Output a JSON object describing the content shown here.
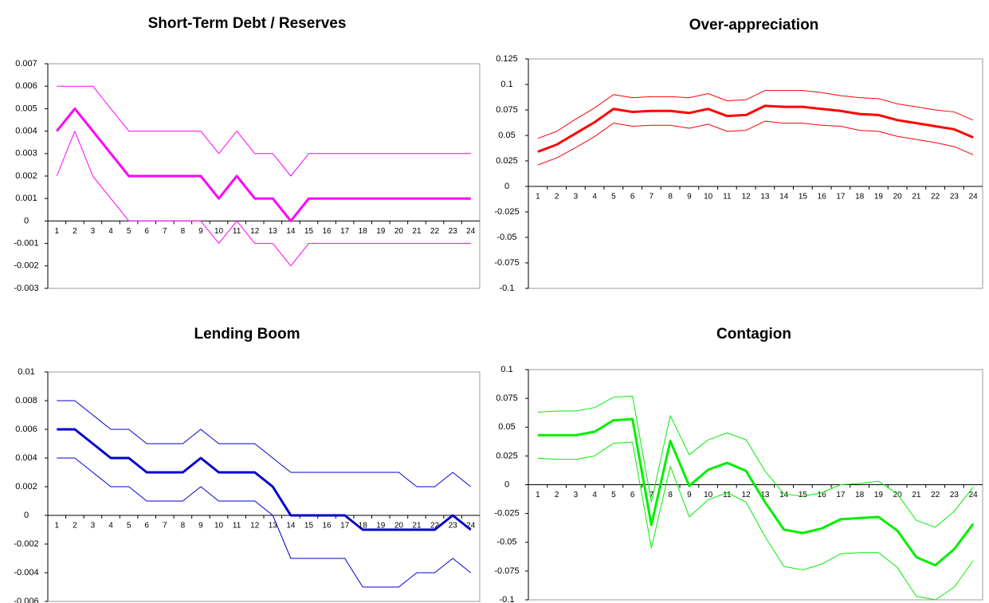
{
  "chart_data": [
    {
      "type": "line",
      "title": "Short-Term Debt / Reserves",
      "categories": [
        1,
        2,
        3,
        4,
        5,
        6,
        7,
        8,
        9,
        10,
        11,
        12,
        13,
        14,
        15,
        16,
        17,
        18,
        19,
        20,
        21,
        22,
        23,
        24
      ],
      "ylim": [
        -0.003,
        0.007
      ],
      "yticks": [
        -0.003,
        -0.002,
        -0.001,
        0,
        0.001,
        0.002,
        0.003,
        0.004,
        0.005,
        0.006,
        0.007
      ],
      "series": [
        {
          "color": "#ff00ff",
          "values": [
            0.004,
            0.005,
            0.004,
            0.003,
            0.002,
            0.002,
            0.002,
            0.002,
            0.002,
            0.001,
            0.002,
            0.001,
            0.001,
            0,
            0.001,
            0.001,
            0.001,
            0.001,
            0.001,
            0.001,
            0.001,
            0.001,
            0.001,
            0.001
          ]
        },
        {
          "color": "#ff00ff",
          "values": [
            0.006,
            0.006,
            0.006,
            0.005,
            0.004,
            0.004,
            0.004,
            0.004,
            0.004,
            0.003,
            0.004,
            0.003,
            0.003,
            0.002,
            0.003,
            0.003,
            0.003,
            0.003,
            0.003,
            0.003,
            0.003,
            0.003,
            0.003,
            0.003
          ]
        },
        {
          "color": "#ff00ff",
          "values": [
            0.002,
            0.004,
            0.002,
            0.001,
            0,
            0,
            0,
            0,
            0,
            -0.001,
            0,
            -0.001,
            -0.001,
            -0.002,
            -0.001,
            -0.001,
            -0.001,
            -0.001,
            -0.001,
            -0.001,
            -0.001,
            -0.001,
            -0.001,
            -0.001
          ]
        }
      ]
    },
    {
      "type": "line",
      "title": "Over-appreciation",
      "categories": [
        1,
        2,
        3,
        4,
        5,
        6,
        7,
        8,
        9,
        10,
        11,
        12,
        13,
        14,
        15,
        16,
        17,
        18,
        19,
        20,
        21,
        22,
        23,
        24
      ],
      "ylim": [
        -0.1,
        0.125
      ],
      "yticks": [
        -0.1,
        -0.075,
        -0.05,
        -0.025,
        0,
        0.025,
        0.05,
        0.075,
        0.1,
        0.125
      ],
      "series": [
        {
          "color": "#ff0000",
          "values": [
            0.034,
            0.041,
            0.052,
            0.063,
            0.076,
            0.073,
            0.074,
            0.074,
            0.072,
            0.076,
            0.069,
            0.07,
            0.079,
            0.078,
            0.078,
            0.076,
            0.074,
            0.071,
            0.07,
            0.065,
            0.062,
            0.059,
            0.056,
            0.048
          ]
        },
        {
          "color": "#ff0000",
          "values": [
            0.047,
            0.054,
            0.066,
            0.077,
            0.09,
            0.087,
            0.088,
            0.088,
            0.087,
            0.091,
            0.084,
            0.085,
            0.094,
            0.094,
            0.094,
            0.092,
            0.089,
            0.087,
            0.086,
            0.081,
            0.078,
            0.075,
            0.073,
            0.065
          ]
        },
        {
          "color": "#ff0000",
          "values": [
            0.021,
            0.028,
            0.038,
            0.049,
            0.062,
            0.059,
            0.06,
            0.06,
            0.057,
            0.061,
            0.054,
            0.055,
            0.064,
            0.062,
            0.062,
            0.06,
            0.059,
            0.055,
            0.054,
            0.049,
            0.046,
            0.043,
            0.039,
            0.031
          ]
        }
      ]
    },
    {
      "type": "line",
      "title": "Lending Boom",
      "categories": [
        1,
        2,
        3,
        4,
        5,
        6,
        7,
        8,
        9,
        10,
        11,
        12,
        13,
        14,
        15,
        16,
        17,
        18,
        19,
        20,
        21,
        22,
        23,
        24
      ],
      "ylim": [
        -0.006,
        0.01
      ],
      "yticks": [
        -0.006,
        -0.004,
        -0.002,
        0,
        0.002,
        0.004,
        0.006,
        0.008,
        0.01
      ],
      "series": [
        {
          "color": "#0000cc",
          "values": [
            0.006,
            0.006,
            0.005,
            0.004,
            0.004,
            0.003,
            0.003,
            0.003,
            0.004,
            0.003,
            0.003,
            0.003,
            0.002,
            0,
            0,
            0,
            0,
            -0.001,
            -0.001,
            -0.001,
            -0.001,
            -0.001,
            0,
            -0.001
          ]
        },
        {
          "color": "#0000cc",
          "values": [
            0.008,
            0.008,
            0.007,
            0.006,
            0.006,
            0.005,
            0.005,
            0.005,
            0.006,
            0.005,
            0.005,
            0.005,
            0.004,
            0.003,
            0.003,
            0.003,
            0.003,
            0.003,
            0.003,
            0.003,
            0.002,
            0.002,
            0.003,
            0.002
          ]
        },
        {
          "color": "#0000cc",
          "values": [
            0.004,
            0.004,
            0.003,
            0.002,
            0.002,
            0.001,
            0.001,
            0.001,
            0.002,
            0.001,
            0.001,
            0.001,
            0,
            -0.003,
            -0.003,
            -0.003,
            -0.003,
            -0.005,
            -0.005,
            -0.005,
            -0.004,
            -0.004,
            -0.003,
            -0.004
          ]
        }
      ]
    },
    {
      "type": "line",
      "title": "Contagion",
      "categories": [
        1,
        2,
        3,
        4,
        5,
        6,
        7,
        8,
        9,
        10,
        11,
        12,
        13,
        14,
        15,
        16,
        17,
        18,
        19,
        20,
        21,
        22,
        23,
        24
      ],
      "ylim": [
        -0.1,
        0.1
      ],
      "yticks": [
        -0.1,
        -0.075,
        -0.05,
        -0.025,
        0,
        0.025,
        0.05,
        0.075,
        0.1
      ],
      "series": [
        {
          "color": "#00ee00",
          "values": [
            0.043,
            0.043,
            0.043,
            0.046,
            0.056,
            0.057,
            -0.035,
            0.038,
            -0.001,
            0.013,
            0.019,
            0.012,
            -0.015,
            -0.039,
            -0.042,
            -0.038,
            -0.03,
            -0.029,
            -0.028,
            -0.04,
            -0.063,
            -0.07,
            -0.056,
            -0.034
          ]
        },
        {
          "color": "#00ee00",
          "values": [
            0.063,
            0.064,
            0.064,
            0.067,
            0.076,
            0.077,
            -0.015,
            0.06,
            0.026,
            0.039,
            0.045,
            0.039,
            0.012,
            -0.008,
            -0.01,
            -0.007,
            0,
            0.001,
            0.003,
            -0.008,
            -0.031,
            -0.037,
            -0.023,
            -0.002
          ]
        },
        {
          "color": "#00ee00",
          "values": [
            0.023,
            0.022,
            0.022,
            0.025,
            0.036,
            0.037,
            -0.055,
            0.016,
            -0.028,
            -0.013,
            -0.007,
            -0.015,
            -0.045,
            -0.071,
            -0.074,
            -0.069,
            -0.06,
            -0.059,
            -0.059,
            -0.072,
            -0.097,
            -0.1,
            -0.089,
            -0.066
          ]
        }
      ]
    }
  ]
}
